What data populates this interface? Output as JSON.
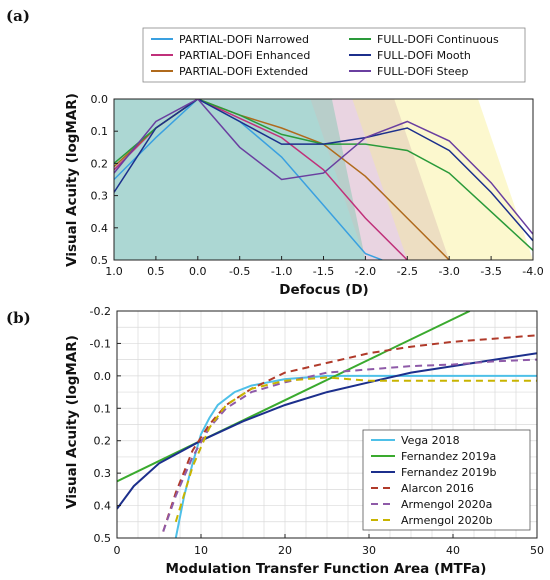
{
  "chart_data": [
    {
      "panel": "(a)",
      "type": "line",
      "xlabel": "Defocus (D)",
      "ylabel": "Visual Acuity (logMAR)",
      "xlim": [
        1.0,
        -4.0
      ],
      "ylim": [
        0.5,
        0.0
      ],
      "xticks": [
        "1.0",
        "0.5",
        "0.0",
        "-0.5",
        "-1.0",
        "-1.5",
        "-2.0",
        "-2.5",
        "-3.0",
        "-3.5",
        "-4.0"
      ],
      "yticks": [
        "0.0",
        "0.1",
        "0.2",
        "0.3",
        "0.4",
        "0.5"
      ],
      "legend": "top",
      "shaded_regions": [
        {
          "series": "PARTIAL-DOFi Narrowed",
          "x_end": -2.0,
          "color": "#cfe6f2"
        },
        {
          "series": "PARTIAL-DOFi Enhanced",
          "x_end": -2.5,
          "color": "#e8d2e6"
        },
        {
          "series": "PARTIAL-DOFi Extended",
          "x_end": -3.0,
          "color": "#ead9c0"
        },
        {
          "series": "FULL-DOFi",
          "x_end": -4.0,
          "color": "#fbf7c6"
        }
      ],
      "series": [
        {
          "name": "PARTIAL-DOFi Narrowed",
          "color": "#3aa0e0",
          "x": [
            1.0,
            0.5,
            0.0,
            -0.5,
            -1.0,
            -1.5,
            -2.0,
            -2.2
          ],
          "y": [
            0.25,
            0.12,
            0.0,
            0.07,
            0.18,
            0.33,
            0.48,
            0.5
          ]
        },
        {
          "name": "PARTIAL-DOFi Enhanced",
          "color": "#c0307a",
          "x": [
            1.0,
            0.5,
            0.0,
            -0.5,
            -1.0,
            -1.5,
            -2.0,
            -2.5
          ],
          "y": [
            0.22,
            0.09,
            0.0,
            0.06,
            0.12,
            0.22,
            0.37,
            0.5
          ]
        },
        {
          "name": "PARTIAL-DOFi Extended",
          "color": "#b06a1c",
          "x": [
            1.0,
            0.5,
            0.0,
            -0.5,
            -1.0,
            -1.5,
            -2.0,
            -2.5,
            -3.0
          ],
          "y": [
            0.21,
            0.09,
            0.0,
            0.05,
            0.09,
            0.14,
            0.24,
            0.37,
            0.5
          ]
        },
        {
          "name": "FULL-DOFi Continuous",
          "color": "#2a9a3a",
          "x": [
            1.0,
            0.5,
            0.0,
            -0.5,
            -1.0,
            -1.5,
            -2.0,
            -2.5,
            -3.0,
            -3.5,
            -4.0
          ],
          "y": [
            0.2,
            0.09,
            0.0,
            0.05,
            0.11,
            0.14,
            0.14,
            0.16,
            0.23,
            0.35,
            0.47
          ]
        },
        {
          "name": "FULL-DOFi Mooth",
          "color": "#1c2f8c",
          "x": [
            1.0,
            0.5,
            0.0,
            -0.5,
            -1.0,
            -1.5,
            -2.0,
            -2.5,
            -3.0,
            -3.5,
            -4.0
          ],
          "y": [
            0.29,
            0.09,
            0.0,
            0.07,
            0.14,
            0.14,
            0.12,
            0.09,
            0.16,
            0.29,
            0.44
          ]
        },
        {
          "name": "FULL-DOFi Steep",
          "color": "#6a3fa0",
          "x": [
            1.0,
            0.5,
            0.0,
            -0.5,
            -1.0,
            -1.5,
            -2.0,
            -2.5,
            -3.0,
            -3.5,
            -4.0
          ],
          "y": [
            0.23,
            0.07,
            0.0,
            0.15,
            0.25,
            0.23,
            0.12,
            0.07,
            0.13,
            0.26,
            0.42
          ]
        }
      ]
    },
    {
      "panel": "(b)",
      "type": "line",
      "xlabel": "Modulation Transfer Function Area (MTFa)",
      "ylabel": "Visual Acuity (logMAR)",
      "xlim": [
        0,
        50
      ],
      "ylim": [
        0.5,
        -0.2
      ],
      "xticks": [
        "0",
        "10",
        "20",
        "30",
        "40",
        "50"
      ],
      "yticks": [
        "-0.2",
        "-0.1",
        "0.0",
        "0.1",
        "0.2",
        "0.3",
        "0.4",
        "0.5"
      ],
      "grid": true,
      "legend": "bottom-right",
      "series": [
        {
          "name": "Vega 2018",
          "color": "#4ec0e8",
          "dash": "solid",
          "x": [
            7.0,
            8.0,
            9.0,
            10.0,
            11.0,
            12.0,
            14.0,
            16.0,
            18.0,
            20.0,
            25.0,
            30.0,
            40.0,
            50.0
          ],
          "y": [
            0.5,
            0.37,
            0.27,
            0.18,
            0.13,
            0.09,
            0.05,
            0.03,
            0.02,
            0.01,
            0.0,
            0.0,
            0.0,
            0.0
          ]
        },
        {
          "name": "Fernandez 2019a",
          "color": "#3aaa2e",
          "dash": "solid",
          "x": [
            0,
            10,
            20,
            30,
            42
          ],
          "y": [
            0.325,
            0.2,
            0.075,
            -0.05,
            -0.2
          ]
        },
        {
          "name": "Fernandez 2019b",
          "color": "#1c2f8c",
          "dash": "solid",
          "x": [
            0,
            2,
            5,
            10,
            15,
            20,
            25,
            30,
            35,
            40,
            45,
            50
          ],
          "y": [
            0.41,
            0.34,
            0.27,
            0.2,
            0.14,
            0.09,
            0.05,
            0.02,
            -0.01,
            -0.03,
            -0.05,
            -0.07
          ]
        },
        {
          "name": "Alarcon 2016",
          "color": "#b03a2a",
          "dash": "dashed",
          "x": [
            5.5,
            7.0,
            9.0,
            11.0,
            13.0,
            16.0,
            20.0,
            25.0,
            30.0,
            35.0,
            40.0,
            45.0,
            50.0
          ],
          "y": [
            0.48,
            0.36,
            0.23,
            0.15,
            0.09,
            0.04,
            -0.01,
            -0.04,
            -0.07,
            -0.09,
            -0.105,
            -0.115,
            -0.125
          ]
        },
        {
          "name": "Armengol 2020a",
          "color": "#8e5aa8",
          "dash": "dashed",
          "x": [
            5.5,
            7.0,
            9.0,
            11.0,
            13.0,
            16.0,
            20.0,
            25.0,
            30.0,
            35.0,
            40.0,
            45.0,
            50.0
          ],
          "y": [
            0.48,
            0.37,
            0.25,
            0.16,
            0.1,
            0.05,
            0.02,
            -0.01,
            -0.02,
            -0.03,
            -0.035,
            -0.045,
            -0.05
          ]
        },
        {
          "name": "Armengol 2020b",
          "color": "#c8b400",
          "dash": "dashed",
          "x": [
            7.0,
            9.0,
            11.0,
            13.0,
            16.0,
            20.0,
            25.0,
            30.0,
            40.0,
            50.0
          ],
          "y": [
            0.45,
            0.28,
            0.16,
            0.09,
            0.04,
            0.015,
            0.005,
            0.015,
            0.015,
            0.015
          ]
        }
      ]
    }
  ]
}
